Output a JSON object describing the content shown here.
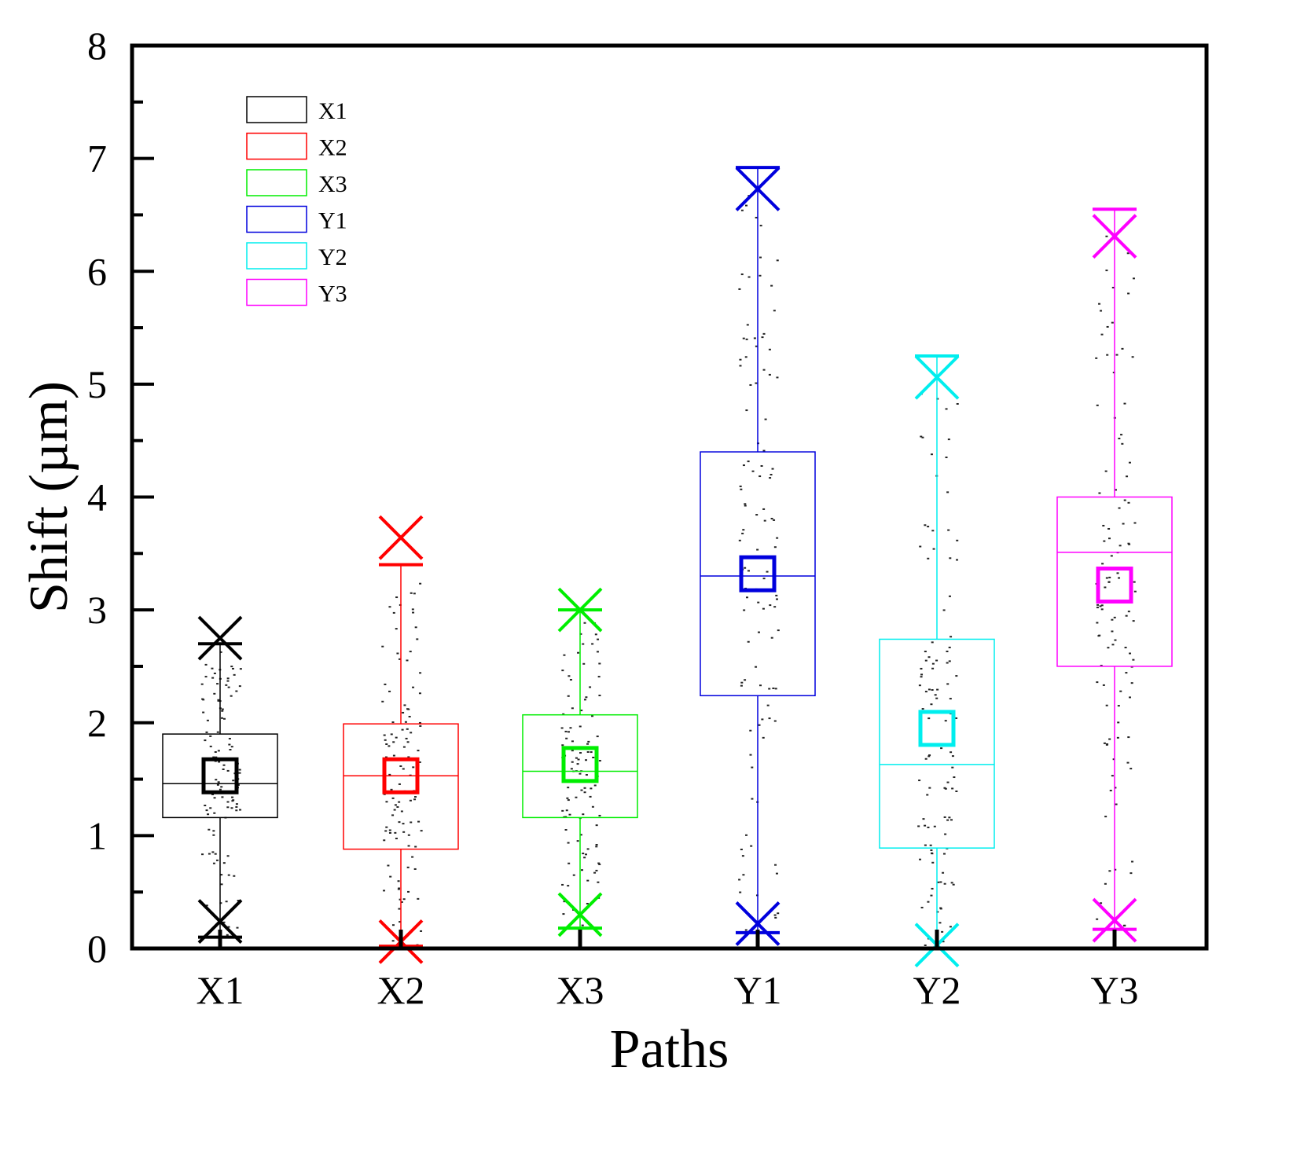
{
  "chart_data": {
    "type": "box",
    "xlabel": "Paths",
    "ylabel": "Shift (µm)",
    "ylim": [
      0,
      8
    ],
    "yticks": [
      0,
      1,
      2,
      3,
      4,
      5,
      6,
      7,
      8
    ],
    "categories": [
      "X1",
      "X2",
      "X3",
      "Y1",
      "Y2",
      "Y3"
    ],
    "legend": {
      "position": "top-left",
      "entries": [
        "X1",
        "X2",
        "X3",
        "Y1",
        "Y2",
        "Y3"
      ]
    },
    "series": [
      {
        "name": "X1",
        "color": "#000000",
        "q1": 1.16,
        "median": 1.46,
        "q3": 1.9,
        "mean": 1.53,
        "whisker_low": 0.1,
        "whisker_high": 2.7,
        "min": 0.24,
        "max": 2.75
      },
      {
        "name": "X2",
        "color": "#ff0000",
        "q1": 0.88,
        "median": 1.53,
        "q3": 1.99,
        "mean": 1.53,
        "whisker_low": 0.02,
        "whisker_high": 3.4,
        "min": 0.06,
        "max": 3.64
      },
      {
        "name": "X3",
        "color": "#00ee00",
        "q1": 1.16,
        "median": 1.57,
        "q3": 2.07,
        "mean": 1.63,
        "whisker_low": 0.18,
        "whisker_high": 3.0,
        "min": 0.3,
        "max": 3.0
      },
      {
        "name": "Y1",
        "color": "#0000dd",
        "q1": 2.24,
        "median": 3.3,
        "q3": 4.4,
        "mean": 3.32,
        "whisker_low": 0.14,
        "whisker_high": 6.92,
        "min": 0.22,
        "max": 6.73
      },
      {
        "name": "Y2",
        "color": "#00eeee",
        "q1": 0.89,
        "median": 1.63,
        "q3": 2.74,
        "mean": 1.95,
        "whisker_low": 0.0,
        "whisker_high": 5.25,
        "min": 0.03,
        "max": 5.06
      },
      {
        "name": "Y3",
        "color": "#ff00ff",
        "q1": 2.5,
        "median": 3.51,
        "q3": 4.0,
        "mean": 3.22,
        "whisker_low": 0.17,
        "whisker_high": 6.55,
        "min": 0.25,
        "max": 6.31
      }
    ]
  }
}
